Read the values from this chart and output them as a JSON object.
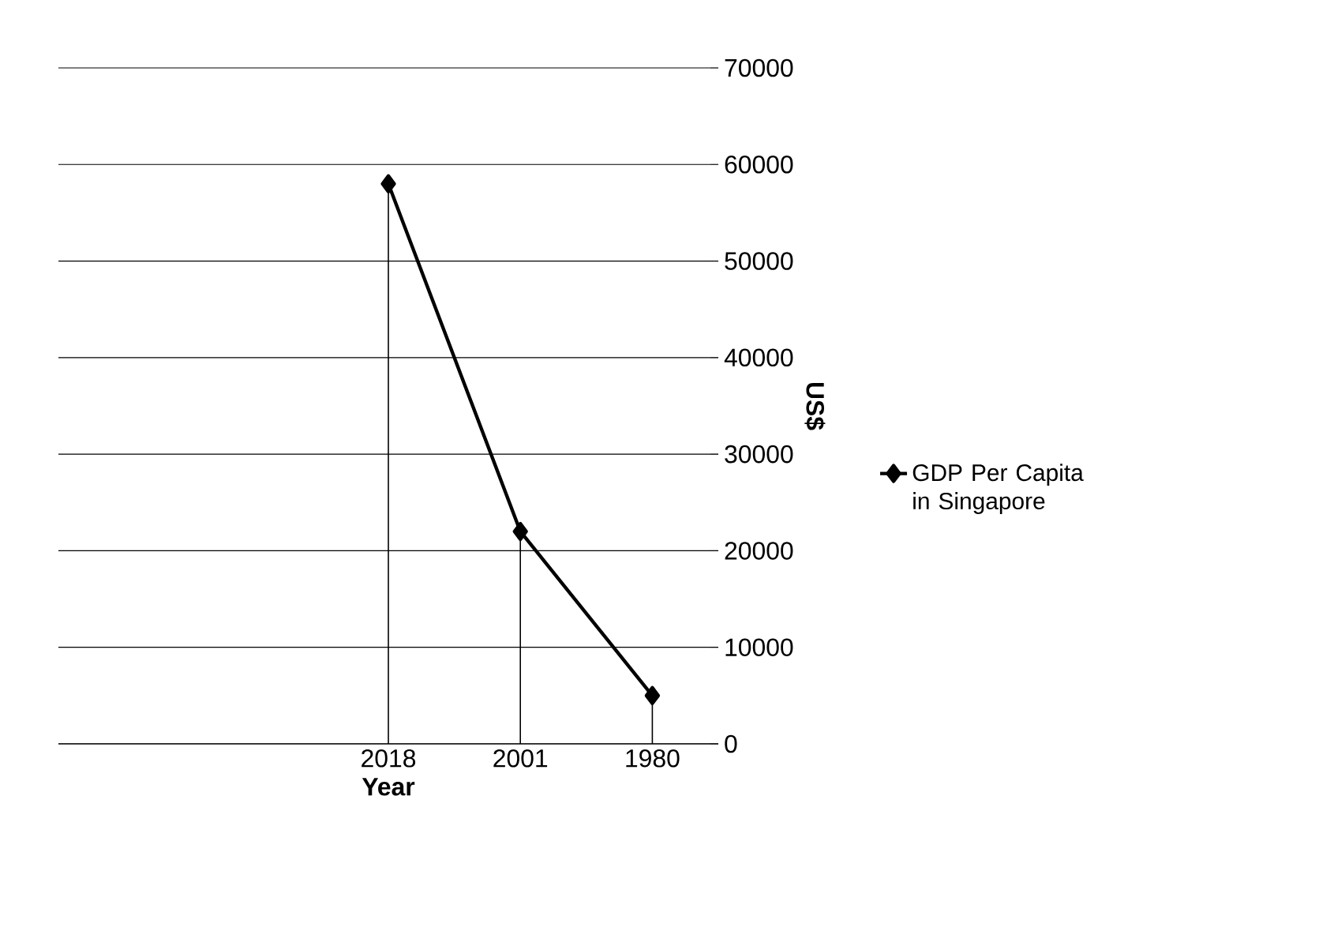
{
  "chart_data": {
    "type": "line",
    "xlabel": "Year",
    "ylabel": "US$",
    "categories": [
      null,
      null,
      "2018",
      "2001",
      "1980"
    ],
    "series": [
      {
        "name": "GDP Per Capita in Singapore",
        "color": "#000000",
        "values": [
          null,
          null,
          58000,
          22000,
          5000
        ],
        "errors": [
          null,
          null,
          [
            0,
            58000
          ],
          [
            0,
            22000
          ],
          [
            0,
            5000
          ]
        ]
      }
    ],
    "ylim": [
      0,
      70000
    ],
    "yticks": [
      0,
      10000,
      20000,
      30000,
      40000,
      50000,
      60000,
      70000
    ],
    "grid": "y",
    "legend": "right",
    "marker": "diamond",
    "line_style": "solid"
  }
}
